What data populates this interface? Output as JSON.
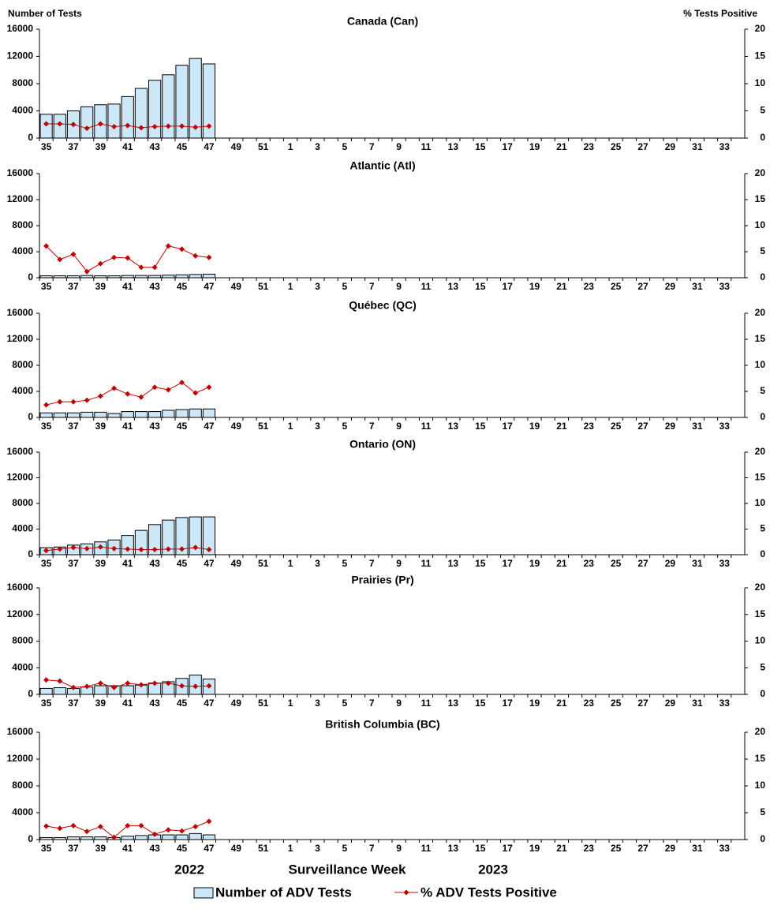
{
  "y_axis_label": "Number of Tests",
  "y2_axis_label": "% Tests Positive",
  "x_axis_label": "Surveillance Week",
  "year_labels": [
    "2022",
    "2023"
  ],
  "chart_data": [
    {
      "type": "bar_line",
      "title": "Canada (Can)",
      "categories": [
        "35",
        null,
        "37",
        null,
        "39",
        null,
        "41",
        null,
        "43",
        null,
        "45",
        null,
        "47",
        null,
        "49",
        null,
        "51",
        null,
        "1",
        null,
        "3",
        null,
        "5",
        null,
        "7",
        null,
        "9",
        null,
        "11",
        null,
        "13",
        null,
        "15",
        null,
        "17",
        null,
        "19",
        null,
        "21",
        null,
        "23",
        null,
        "25",
        null,
        "27",
        null,
        "29",
        null,
        "31",
        null,
        "33",
        null
      ],
      "ylim": [
        0,
        16000
      ],
      "yticks": [
        0,
        4000,
        8000,
        12000,
        16000
      ],
      "y2lim": [
        0,
        20
      ],
      "y2ticks": [
        0,
        5,
        10,
        15,
        20
      ],
      "series": [
        {
          "name": "Number of ADV Tests",
          "color": "#cce8f8",
          "values": [
            3500,
            3500,
            4000,
            4600,
            4900,
            5000,
            6100,
            7300,
            8500,
            9300,
            10700,
            11700,
            10900,
            null,
            null,
            null,
            null,
            null,
            null,
            null,
            null,
            null,
            null,
            null,
            null,
            null,
            null,
            null,
            null,
            null,
            null,
            null,
            null,
            null,
            null,
            null,
            null,
            null,
            null,
            null,
            null,
            null,
            null,
            null,
            null,
            null,
            null,
            null,
            null,
            null,
            null,
            null
          ]
        },
        {
          "name": "% ADV Tests Positive",
          "color": "#c00000",
          "axis": "y2",
          "values": [
            2.6,
            2.6,
            2.5,
            1.8,
            2.6,
            2.1,
            2.3,
            1.9,
            2.1,
            2.2,
            2.2,
            2.0,
            2.2,
            null,
            null,
            null,
            null,
            null,
            null,
            null,
            null,
            null,
            null,
            null,
            null,
            null,
            null,
            null,
            null,
            null,
            null,
            null,
            null,
            null,
            null,
            null,
            null,
            null,
            null,
            null,
            null,
            null,
            null,
            null,
            null,
            null,
            null,
            null,
            null,
            null,
            null,
            null
          ]
        }
      ]
    },
    {
      "type": "bar_line",
      "title": "Atlantic (Atl)",
      "categories": [
        "35",
        null,
        "37",
        null,
        "39",
        null,
        "41",
        null,
        "43",
        null,
        "45",
        null,
        "47",
        null,
        "49",
        null,
        "51",
        null,
        "1",
        null,
        "3",
        null,
        "5",
        null,
        "7",
        null,
        "9",
        null,
        "11",
        null,
        "13",
        null,
        "15",
        null,
        "17",
        null,
        "19",
        null,
        "21",
        null,
        "23",
        null,
        "25",
        null,
        "27",
        null,
        "29",
        null,
        "31",
        null,
        "33",
        null
      ],
      "ylim": [
        0,
        16000
      ],
      "yticks": [
        0,
        4000,
        8000,
        12000,
        16000
      ],
      "y2lim": [
        0,
        20
      ],
      "y2ticks": [
        0,
        5,
        10,
        15,
        20
      ],
      "series": [
        {
          "color": "#cce8f8",
          "values": [
            300,
            300,
            300,
            350,
            300,
            300,
            350,
            350,
            350,
            400,
            450,
            500,
            550,
            null,
            null,
            null,
            null,
            null,
            null,
            null,
            null,
            null,
            null,
            null,
            null,
            null,
            null,
            null,
            null,
            null,
            null,
            null,
            null,
            null,
            null,
            null,
            null,
            null,
            null,
            null,
            null,
            null,
            null,
            null,
            null,
            null,
            null,
            null,
            null,
            null,
            null,
            null
          ]
        },
        {
          "color": "#c00000",
          "axis": "y2",
          "values": [
            6.1,
            3.5,
            4.5,
            1.2,
            2.7,
            3.9,
            3.8,
            2.0,
            2.0,
            6.1,
            5.5,
            4.2,
            3.9,
            null,
            null,
            null,
            null,
            null,
            null,
            null,
            null,
            null,
            null,
            null,
            null,
            null,
            null,
            null,
            null,
            null,
            null,
            null,
            null,
            null,
            null,
            null,
            null,
            null,
            null,
            null,
            null,
            null,
            null,
            null,
            null,
            null,
            null,
            null,
            null,
            null,
            null,
            null
          ]
        }
      ]
    },
    {
      "type": "bar_line",
      "title": "Québec (QC)",
      "categories": [
        "35",
        null,
        "37",
        null,
        "39",
        null,
        "41",
        null,
        "43",
        null,
        "45",
        null,
        "47",
        null,
        "49",
        null,
        "51",
        null,
        "1",
        null,
        "3",
        null,
        "5",
        null,
        "7",
        null,
        "9",
        null,
        "11",
        null,
        "13",
        null,
        "15",
        null,
        "17",
        null,
        "19",
        null,
        "21",
        null,
        "23",
        null,
        "25",
        null,
        "27",
        null,
        "29",
        null,
        "31",
        null,
        "33",
        null
      ],
      "ylim": [
        0,
        16000
      ],
      "yticks": [
        0,
        4000,
        8000,
        12000,
        16000
      ],
      "y2lim": [
        0,
        20
      ],
      "y2ticks": [
        0,
        5,
        10,
        15,
        20
      ],
      "series": [
        {
          "color": "#cce8f8",
          "values": [
            700,
            700,
            700,
            800,
            800,
            600,
            900,
            900,
            900,
            1100,
            1200,
            1300,
            1300,
            null,
            null,
            null,
            null,
            null,
            null,
            null,
            null,
            null,
            null,
            null,
            null,
            null,
            null,
            null,
            null,
            null,
            null,
            null,
            null,
            null,
            null,
            null,
            null,
            null,
            null,
            null,
            null,
            null,
            null,
            null,
            null,
            null,
            null,
            null,
            null,
            null,
            null,
            null
          ]
        },
        {
          "color": "#c00000",
          "axis": "y2",
          "values": [
            2.4,
            3.0,
            3.0,
            3.3,
            4.1,
            5.6,
            4.5,
            3.9,
            5.8,
            5.3,
            6.7,
            4.7,
            5.8,
            null,
            null,
            null,
            null,
            null,
            null,
            null,
            null,
            null,
            null,
            null,
            null,
            null,
            null,
            null,
            null,
            null,
            null,
            null,
            null,
            null,
            null,
            null,
            null,
            null,
            null,
            null,
            null,
            null,
            null,
            null,
            null,
            null,
            null,
            null,
            null,
            null,
            null,
            null
          ]
        }
      ]
    },
    {
      "type": "bar_line",
      "title": "Ontario (ON)",
      "categories": [
        "35",
        null,
        "37",
        null,
        "39",
        null,
        "41",
        null,
        "43",
        null,
        "45",
        null,
        "47",
        null,
        "49",
        null,
        "51",
        null,
        "1",
        null,
        "3",
        null,
        "5",
        null,
        "7",
        null,
        "9",
        null,
        "11",
        null,
        "13",
        null,
        "15",
        null,
        "17",
        null,
        "19",
        null,
        "21",
        null,
        "23",
        null,
        "25",
        null,
        "27",
        null,
        "29",
        null,
        "31",
        null,
        "33",
        null
      ],
      "ylim": [
        0,
        16000
      ],
      "yticks": [
        0,
        4000,
        8000,
        12000,
        16000
      ],
      "y2lim": [
        0,
        20
      ],
      "y2ticks": [
        0,
        5,
        10,
        15,
        20
      ],
      "series": [
        {
          "color": "#cce8f8",
          "values": [
            1100,
            1200,
            1500,
            1700,
            2000,
            2300,
            3000,
            3800,
            4700,
            5400,
            5800,
            5900,
            5900,
            null,
            null,
            null,
            null,
            null,
            null,
            null,
            null,
            null,
            null,
            null,
            null,
            null,
            null,
            null,
            null,
            null,
            null,
            null,
            null,
            null,
            null,
            null,
            null,
            null,
            null,
            null,
            null,
            null,
            null,
            null,
            null,
            null,
            null,
            null,
            null,
            null,
            null,
            null
          ]
        },
        {
          "color": "#c00000",
          "axis": "y2",
          "values": [
            0.8,
            1.1,
            1.4,
            1.2,
            1.5,
            1.2,
            1.1,
            1.0,
            1.0,
            1.1,
            1.1,
            1.4,
            1.0,
            null,
            null,
            null,
            null,
            null,
            null,
            null,
            null,
            null,
            null,
            null,
            null,
            null,
            null,
            null,
            null,
            null,
            null,
            null,
            null,
            null,
            null,
            null,
            null,
            null,
            null,
            null,
            null,
            null,
            null,
            null,
            null,
            null,
            null,
            null,
            null,
            null,
            null,
            null
          ]
        }
      ]
    },
    {
      "type": "bar_line",
      "title": "Prairies (Pr)",
      "categories": [
        "35",
        null,
        "37",
        null,
        "39",
        null,
        "41",
        null,
        "43",
        null,
        "45",
        null,
        "47",
        null,
        "49",
        null,
        "51",
        null,
        "1",
        null,
        "3",
        null,
        "5",
        null,
        "7",
        null,
        "9",
        null,
        "11",
        null,
        "13",
        null,
        "15",
        null,
        "17",
        null,
        "19",
        null,
        "21",
        null,
        "23",
        null,
        "25",
        null,
        "27",
        null,
        "29",
        null,
        "31",
        null,
        "33",
        null
      ],
      "ylim": [
        0,
        16000
      ],
      "yticks": [
        0,
        4000,
        8000,
        12000,
        16000
      ],
      "y2lim": [
        0,
        20
      ],
      "y2ticks": [
        0,
        5,
        10,
        15,
        20
      ],
      "series": [
        {
          "color": "#cce8f8",
          "values": [
            900,
            1000,
            900,
            1100,
            1300,
            1300,
            1300,
            1400,
            1700,
            1900,
            2400,
            2900,
            2300,
            null,
            null,
            null,
            null,
            null,
            null,
            null,
            null,
            null,
            null,
            null,
            null,
            null,
            null,
            null,
            null,
            null,
            null,
            null,
            null,
            null,
            null,
            null,
            null,
            null,
            null,
            null,
            null,
            null,
            null,
            null,
            null,
            null,
            null,
            null,
            null,
            null,
            null,
            null
          ]
        },
        {
          "color": "#c00000",
          "axis": "y2",
          "values": [
            2.7,
            2.5,
            1.3,
            1.5,
            2.1,
            1.3,
            2.1,
            1.8,
            2.1,
            2.1,
            1.6,
            1.5,
            1.6,
            null,
            null,
            null,
            null,
            null,
            null,
            null,
            null,
            null,
            null,
            null,
            null,
            null,
            null,
            null,
            null,
            null,
            null,
            null,
            null,
            null,
            null,
            null,
            null,
            null,
            null,
            null,
            null,
            null,
            null,
            null,
            null,
            null,
            null,
            null,
            null,
            null,
            null,
            null
          ]
        }
      ]
    },
    {
      "type": "bar_line",
      "title": "British Columbia (BC)",
      "categories": [
        "35",
        null,
        "37",
        null,
        "39",
        null,
        "41",
        null,
        "43",
        null,
        "45",
        null,
        "47",
        null,
        "49",
        null,
        "51",
        null,
        "1",
        null,
        "3",
        null,
        "5",
        null,
        "7",
        null,
        "9",
        null,
        "11",
        null,
        "13",
        null,
        "15",
        null,
        "17",
        null,
        "19",
        null,
        "21",
        null,
        "23",
        null,
        "25",
        null,
        "27",
        null,
        "29",
        null,
        "31",
        null,
        "33",
        null
      ],
      "ylim": [
        0,
        16000
      ],
      "yticks": [
        0,
        4000,
        8000,
        12000,
        16000
      ],
      "y2lim": [
        0,
        20
      ],
      "y2ticks": [
        0,
        5,
        10,
        15,
        20
      ],
      "series": [
        {
          "color": "#cce8f8",
          "values": [
            300,
            300,
            400,
            400,
            400,
            300,
            500,
            600,
            700,
            700,
            700,
            900,
            700,
            null,
            null,
            null,
            null,
            null,
            null,
            null,
            null,
            null,
            null,
            null,
            null,
            null,
            null,
            null,
            null,
            null,
            null,
            null,
            null,
            null,
            null,
            null,
            null,
            null,
            null,
            null,
            null,
            null,
            null,
            null,
            null,
            null,
            null,
            null,
            null,
            null,
            null,
            null
          ]
        },
        {
          "color": "#c00000",
          "axis": "y2",
          "values": [
            2.5,
            2.1,
            2.6,
            1.5,
            2.4,
            0.4,
            2.6,
            2.6,
            1.0,
            1.8,
            1.6,
            2.4,
            3.4,
            null,
            null,
            null,
            null,
            null,
            null,
            null,
            null,
            null,
            null,
            null,
            null,
            null,
            null,
            null,
            null,
            null,
            null,
            null,
            null,
            null,
            null,
            null,
            null,
            null,
            null,
            null,
            null,
            null,
            null,
            null,
            null,
            null,
            null,
            null,
            null,
            null,
            null,
            null
          ]
        }
      ]
    }
  ]
}
